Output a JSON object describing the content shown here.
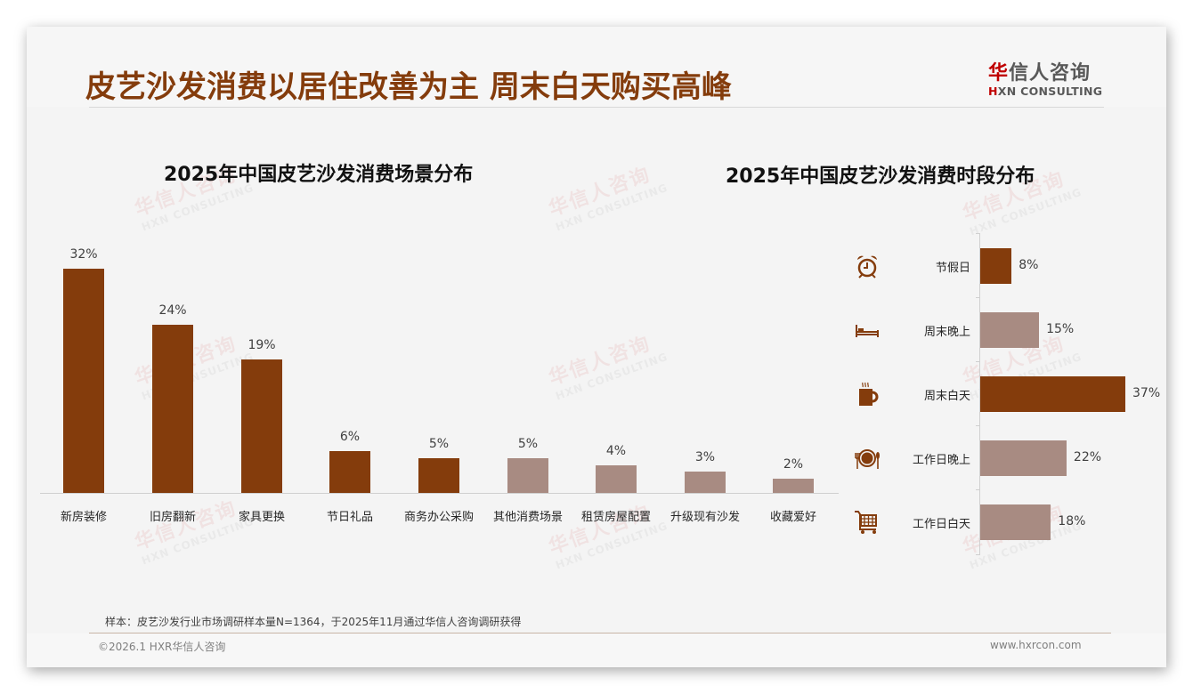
{
  "header": {
    "title": "皮艺沙发消费以居住改善为主 周末白天购买高峰",
    "logo_cn_first": "华",
    "logo_cn_rest": "信人咨询",
    "logo_en_first": "H",
    "logo_en_rest": "XN CONSULTING"
  },
  "watermark": {
    "cn": "华信人咨询",
    "en": "HXN CONSULTING"
  },
  "colors": {
    "primary": "#843c0c",
    "secondary": "#a88b82",
    "title": "#843c0c"
  },
  "left_chart": {
    "title": "2025年中国皮艺沙发消费场景分布"
  },
  "right_chart": {
    "title": "2025年中国皮艺沙发消费时段分布"
  },
  "chart_data": [
    {
      "type": "bar",
      "title": "2025年中国皮艺沙发消费场景分布",
      "xlabel": "",
      "ylabel": "",
      "categories": [
        "新房装修",
        "旧房翻新",
        "家具更换",
        "节日礼品",
        "商务办公采购",
        "其他消费场景",
        "租赁房屋配置",
        "升级现有沙发",
        "收藏爱好"
      ],
      "values": [
        32,
        24,
        19,
        6,
        5,
        5,
        4,
        3,
        2
      ],
      "labels": [
        "32%",
        "24%",
        "19%",
        "6%",
        "5%",
        "5%",
        "4%",
        "3%",
        "2%"
      ],
      "colors": [
        "#843c0c",
        "#843c0c",
        "#843c0c",
        "#843c0c",
        "#843c0c",
        "#a88b82",
        "#a88b82",
        "#a88b82",
        "#a88b82"
      ],
      "ylim": [
        0,
        35
      ],
      "grid": false,
      "legend": "none"
    },
    {
      "type": "bar",
      "orientation": "horizontal",
      "title": "2025年中国皮艺沙发消费时段分布",
      "categories": [
        "节假日",
        "周末晚上",
        "周末白天",
        "工作日晚上",
        "工作日白天"
      ],
      "values": [
        8,
        15,
        37,
        22,
        18
      ],
      "labels": [
        "8%",
        "15%",
        "37%",
        "22%",
        "18%"
      ],
      "icons": [
        "alarm-clock-icon",
        "bed-icon",
        "coffee-cup-icon",
        "plate-cutlery-icon",
        "shopping-cart-icon"
      ],
      "colors": [
        "#843c0c",
        "#a88b82",
        "#843c0c",
        "#a88b82",
        "#a88b82"
      ],
      "xlim": [
        0,
        40
      ],
      "grid": false,
      "legend": "none"
    }
  ],
  "footer": {
    "note": "样本：皮艺沙发行业市场调研样本量N=1364，于2025年11月通过华信人咨询调研获得",
    "copyright": "©2026.1 HXR华信人咨询",
    "website": "www.hxrcon.com"
  }
}
